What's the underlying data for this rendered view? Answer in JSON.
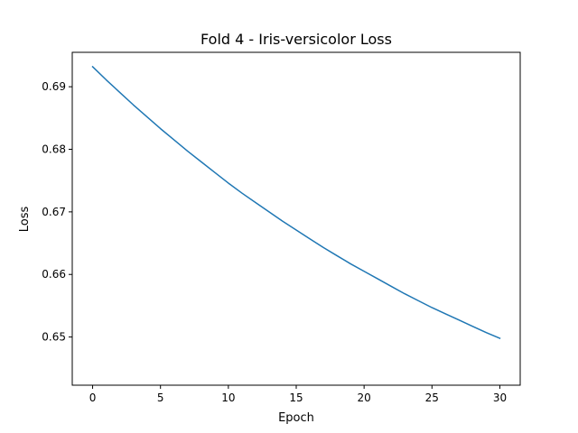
{
  "chart_data": {
    "type": "line",
    "title": "Fold 4 - Iris-versicolor Loss",
    "xlabel": "Epoch",
    "ylabel": "Loss",
    "xlim": [
      -1.5,
      31.5
    ],
    "ylim": [
      0.6423,
      0.6955
    ],
    "x_ticks": [
      0,
      5,
      10,
      15,
      20,
      25,
      30
    ],
    "y_ticks": [
      0.65,
      0.66,
      0.67,
      0.68,
      0.69
    ],
    "x_tick_labels": [
      "0",
      "5",
      "10",
      "15",
      "20",
      "25",
      "30"
    ],
    "y_tick_labels": [
      "0.65",
      "0.66",
      "0.67",
      "0.68",
      "0.69"
    ],
    "grid": false,
    "series": [
      {
        "color": "#1f77b4",
        "x": [
          0,
          1,
          2,
          3,
          4,
          5,
          6,
          7,
          8,
          9,
          10,
          11,
          12,
          13,
          14,
          15,
          16,
          17,
          18,
          19,
          20,
          21,
          22,
          23,
          24,
          25,
          26,
          27,
          28,
          29,
          30
        ],
        "y": [
          0.6932,
          0.6911,
          0.6891,
          0.6871,
          0.6852,
          0.6833,
          0.6815,
          0.6797,
          0.678,
          0.6763,
          0.6746,
          0.673,
          0.6715,
          0.67,
          0.6685,
          0.6671,
          0.6657,
          0.6643,
          0.663,
          0.6617,
          0.6605,
          0.6593,
          0.6581,
          0.6569,
          0.6558,
          0.6547,
          0.6537,
          0.6527,
          0.6517,
          0.6507,
          0.6498
        ]
      }
    ]
  }
}
